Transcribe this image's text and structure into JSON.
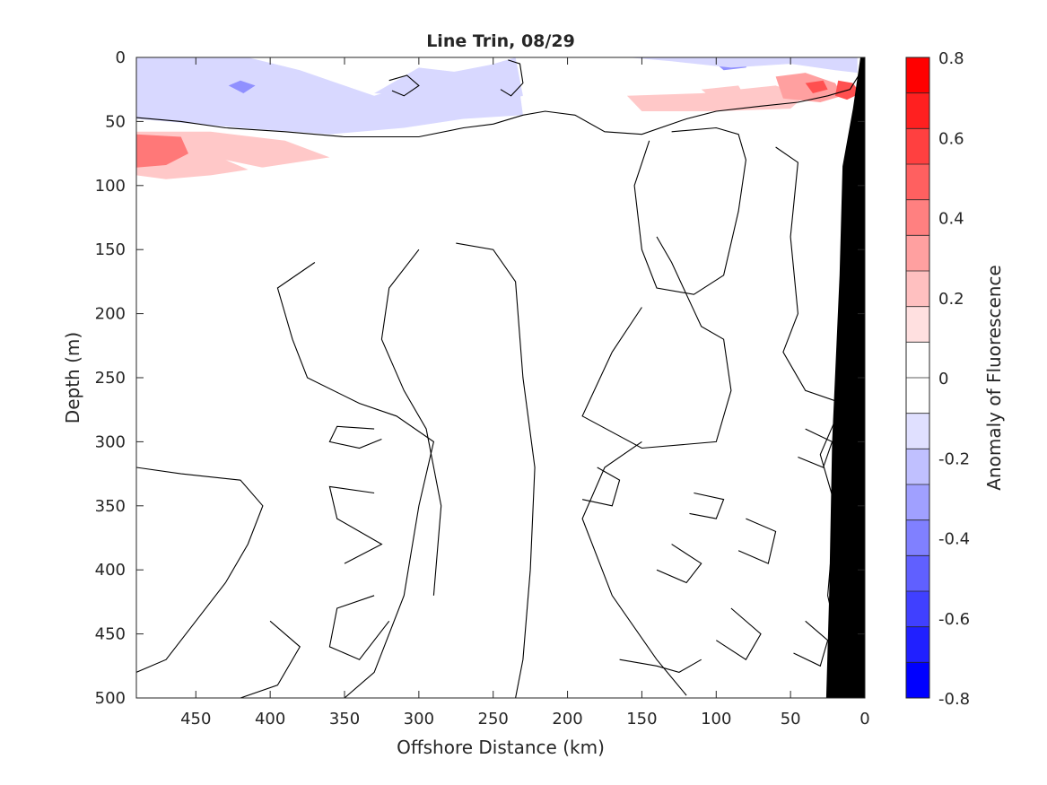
{
  "chart_data": {
    "type": "heatmap",
    "title": "Line Trin, 08/29",
    "xlabel": "Offshore Distance (km)",
    "ylabel": "Depth (m)",
    "colorbar_label": "Anomaly of Fluorescence",
    "x_reversed": true,
    "y_reversed": true,
    "xlim": [
      0,
      490
    ],
    "ylim": [
      0,
      500
    ],
    "xticks": [
      450,
      400,
      350,
      300,
      250,
      200,
      150,
      100,
      50,
      0
    ],
    "yticks": [
      0,
      50,
      100,
      150,
      200,
      250,
      300,
      350,
      400,
      450,
      500
    ],
    "colorbar": {
      "range": [
        -0.8,
        0.8
      ],
      "ticks": [
        0.8,
        0.6,
        0.4,
        0.2,
        0,
        -0.2,
        -0.4,
        -0.6,
        -0.8
      ],
      "tick_labels": [
        "0.8",
        "0.6",
        "0.4",
        "0.2",
        "0",
        "-0.2",
        "-0.4",
        "-0.6",
        "-0.8"
      ],
      "levels": 16,
      "colors": [
        "#ff0000",
        "#ff2020",
        "#ff4040",
        "#ff6060",
        "#ff8080",
        "#ffa0a0",
        "#ffc0c0",
        "#ffe0e0",
        "#ffffff",
        "#ffffff",
        "#e0e0ff",
        "#c0c0ff",
        "#a0a0ff",
        "#8080ff",
        "#6060ff",
        "#4040ff",
        "#2020ff",
        "#0000ff"
      ]
    },
    "features": [
      {
        "kind": "negative",
        "value": -0.25,
        "polygon": [
          [
            490,
            0
          ],
          [
            415,
            0
          ],
          [
            380,
            10
          ],
          [
            330,
            30
          ],
          [
            280,
            12
          ],
          [
            235,
            2
          ],
          [
            230,
            45
          ],
          [
            270,
            48
          ],
          [
            310,
            55
          ],
          [
            360,
            60
          ],
          [
            420,
            55
          ],
          [
            490,
            48
          ]
        ]
      },
      {
        "kind": "negative",
        "value": -0.2,
        "polygon": [
          [
            235,
            0
          ],
          [
            270,
            12
          ],
          [
            300,
            8
          ],
          [
            330,
            28
          ],
          [
            290,
            30
          ],
          [
            255,
            38
          ],
          [
            230,
            30
          ]
        ]
      },
      {
        "kind": "negative",
        "value": -0.4,
        "polygon": [
          [
            420,
            18
          ],
          [
            410,
            22
          ],
          [
            418,
            28
          ],
          [
            428,
            22
          ]
        ]
      },
      {
        "kind": "negative",
        "value": -0.4,
        "polygon": [
          [
            105,
            0
          ],
          [
            75,
            0
          ],
          [
            80,
            8
          ],
          [
            95,
            10
          ]
        ]
      },
      {
        "kind": "negative",
        "value": -0.5,
        "polygon": [
          [
            40,
            0
          ],
          [
            15,
            0
          ],
          [
            22,
            5
          ],
          [
            35,
            4
          ]
        ]
      },
      {
        "kind": "negative",
        "value": -0.2,
        "polygon": [
          [
            215,
            0
          ],
          [
            160,
            0
          ],
          [
            130,
            3
          ],
          [
            90,
            8
          ],
          [
            50,
            5
          ],
          [
            20,
            10
          ],
          [
            5,
            12
          ],
          [
            5,
            0
          ]
        ]
      },
      {
        "kind": "positive",
        "value": 0.3,
        "polygon": [
          [
            490,
            58
          ],
          [
            440,
            58
          ],
          [
            390,
            65
          ],
          [
            360,
            78
          ],
          [
            400,
            85
          ],
          [
            440,
            92
          ],
          [
            470,
            95
          ],
          [
            490,
            92
          ]
        ]
      },
      {
        "kind": "positive",
        "value": 0.5,
        "polygon": [
          [
            490,
            60
          ],
          [
            460,
            62
          ],
          [
            455,
            75
          ],
          [
            470,
            84
          ],
          [
            490,
            86
          ]
        ]
      },
      {
        "kind": "positive",
        "value": 0.2,
        "polygon": [
          [
            340,
            70
          ],
          [
            320,
            76
          ],
          [
            350,
            90
          ],
          [
            345,
            98
          ]
        ]
      },
      {
        "kind": "positive",
        "value": 0.15,
        "polygon": [
          [
            430,
            80
          ],
          [
            410,
            90
          ],
          [
            420,
            108
          ],
          [
            400,
            105
          ],
          [
            380,
            92
          ]
        ]
      },
      {
        "kind": "positive",
        "value": 0.3,
        "polygon": [
          [
            160,
            30
          ],
          [
            110,
            28
          ],
          [
            60,
            22
          ],
          [
            40,
            30
          ],
          [
            50,
            40
          ],
          [
            100,
            42
          ],
          [
            150,
            42
          ]
        ]
      },
      {
        "kind": "positive",
        "value": 0.4,
        "polygon": [
          [
            60,
            15
          ],
          [
            40,
            12
          ],
          [
            20,
            20
          ],
          [
            15,
            30
          ],
          [
            30,
            35
          ],
          [
            55,
            32
          ]
        ]
      },
      {
        "kind": "positive",
        "value": 0.6,
        "polygon": [
          [
            40,
            20
          ],
          [
            28,
            18
          ],
          [
            25,
            25
          ],
          [
            35,
            28
          ]
        ]
      },
      {
        "kind": "positive",
        "value": 0.6,
        "polygon": [
          [
            18,
            18
          ],
          [
            8,
            20
          ],
          [
            3,
            28
          ],
          [
            12,
            33
          ],
          [
            20,
            30
          ]
        ]
      },
      {
        "kind": "positive",
        "value": 0.3,
        "polygon": [
          [
            110,
            25
          ],
          [
            85,
            22
          ],
          [
            80,
            32
          ],
          [
            100,
            34
          ]
        ]
      }
    ],
    "contour_lines": [
      [
        [
          490,
          47
        ],
        [
          460,
          50
        ],
        [
          430,
          55
        ],
        [
          390,
          58
        ],
        [
          350,
          62
        ],
        [
          300,
          62
        ],
        [
          270,
          55
        ],
        [
          250,
          52
        ],
        [
          230,
          45
        ],
        [
          215,
          42
        ],
        [
          195,
          45
        ],
        [
          175,
          58
        ],
        [
          150,
          60
        ],
        [
          120,
          48
        ],
        [
          100,
          42
        ],
        [
          70,
          38
        ],
        [
          45,
          35
        ],
        [
          25,
          30
        ],
        [
          10,
          25
        ],
        [
          2,
          10
        ]
      ],
      [
        [
          240,
          2
        ],
        [
          232,
          5
        ],
        [
          230,
          20
        ],
        [
          238,
          30
        ],
        [
          245,
          25
        ]
      ],
      [
        [
          320,
          18
        ],
        [
          308,
          14
        ],
        [
          300,
          22
        ],
        [
          310,
          30
        ],
        [
          318,
          26
        ]
      ],
      [
        [
          130,
          58
        ],
        [
          100,
          55
        ],
        [
          85,
          60
        ],
        [
          80,
          80
        ],
        [
          85,
          120
        ],
        [
          95,
          170
        ],
        [
          115,
          185
        ],
        [
          140,
          180
        ],
        [
          150,
          150
        ],
        [
          155,
          100
        ],
        [
          145,
          65
        ]
      ],
      [
        [
          140,
          140
        ],
        [
          130,
          160
        ],
        [
          120,
          185
        ],
        [
          110,
          210
        ],
        [
          95,
          220
        ],
        [
          90,
          260
        ],
        [
          100,
          300
        ],
        [
          150,
          305
        ],
        [
          190,
          280
        ],
        [
          170,
          230
        ],
        [
          150,
          195
        ]
      ],
      [
        [
          150,
          300
        ],
        [
          175,
          320
        ],
        [
          190,
          360
        ],
        [
          170,
          420
        ],
        [
          140,
          470
        ],
        [
          120,
          498
        ]
      ],
      [
        [
          60,
          70
        ],
        [
          45,
          82
        ],
        [
          50,
          140
        ],
        [
          45,
          200
        ],
        [
          55,
          230
        ],
        [
          40,
          260
        ],
        [
          15,
          270
        ],
        [
          30,
          310
        ],
        [
          20,
          350
        ],
        [
          25,
          420
        ],
        [
          10,
          500
        ]
      ],
      [
        [
          370,
          160
        ],
        [
          395,
          180
        ],
        [
          385,
          220
        ],
        [
          375,
          250
        ],
        [
          340,
          270
        ],
        [
          315,
          280
        ],
        [
          290,
          300
        ],
        [
          300,
          350
        ],
        [
          310,
          420
        ],
        [
          330,
          480
        ],
        [
          350,
          500
        ]
      ],
      [
        [
          275,
          145
        ],
        [
          250,
          150
        ],
        [
          235,
          175
        ],
        [
          230,
          250
        ],
        [
          222,
          320
        ],
        [
          225,
          400
        ],
        [
          230,
          470
        ],
        [
          235,
          500
        ]
      ],
      [
        [
          300,
          150
        ],
        [
          320,
          180
        ],
        [
          325,
          220
        ],
        [
          310,
          260
        ],
        [
          295,
          290
        ],
        [
          285,
          350
        ],
        [
          290,
          420
        ]
      ],
      [
        [
          490,
          320
        ],
        [
          460,
          325
        ],
        [
          420,
          330
        ],
        [
          405,
          350
        ],
        [
          415,
          380
        ],
        [
          430,
          410
        ],
        [
          450,
          440
        ],
        [
          470,
          470
        ],
        [
          490,
          480
        ]
      ],
      [
        [
          400,
          440
        ],
        [
          380,
          460
        ],
        [
          395,
          490
        ],
        [
          420,
          500
        ]
      ],
      [
        [
          330,
          290
        ],
        [
          355,
          288
        ],
        [
          360,
          300
        ],
        [
          340,
          305
        ],
        [
          325,
          298
        ]
      ],
      [
        [
          330,
          340
        ],
        [
          360,
          335
        ],
        [
          355,
          360
        ],
        [
          325,
          380
        ],
        [
          350,
          395
        ]
      ],
      [
        [
          330,
          420
        ],
        [
          355,
          430
        ],
        [
          360,
          460
        ],
        [
          340,
          470
        ],
        [
          320,
          440
        ]
      ],
      [
        [
          180,
          320
        ],
        [
          165,
          330
        ],
        [
          170,
          350
        ],
        [
          190,
          345
        ]
      ],
      [
        [
          165,
          470
        ],
        [
          140,
          475
        ],
        [
          125,
          480
        ],
        [
          110,
          470
        ]
      ],
      [
        [
          130,
          380
        ],
        [
          110,
          395
        ],
        [
          120,
          410
        ],
        [
          140,
          400
        ]
      ],
      [
        [
          80,
          360
        ],
        [
          60,
          370
        ],
        [
          65,
          395
        ],
        [
          85,
          385
        ]
      ],
      [
        [
          90,
          430
        ],
        [
          70,
          450
        ],
        [
          80,
          470
        ],
        [
          100,
          455
        ]
      ],
      [
        [
          40,
          290
        ],
        [
          22,
          300
        ],
        [
          28,
          320
        ],
        [
          45,
          312
        ]
      ],
      [
        [
          40,
          440
        ],
        [
          25,
          455
        ],
        [
          30,
          475
        ],
        [
          48,
          465
        ]
      ],
      [
        [
          115,
          340
        ],
        [
          95,
          345
        ],
        [
          100,
          360
        ],
        [
          118,
          356
        ]
      ]
    ],
    "coastline": [
      [
        0,
        0
      ],
      [
        3,
        0
      ],
      [
        8,
        40
      ],
      [
        15,
        85
      ],
      [
        17,
        170
      ],
      [
        22,
        300
      ],
      [
        24,
        420
      ],
      [
        26,
        500
      ],
      [
        0,
        500
      ]
    ]
  }
}
